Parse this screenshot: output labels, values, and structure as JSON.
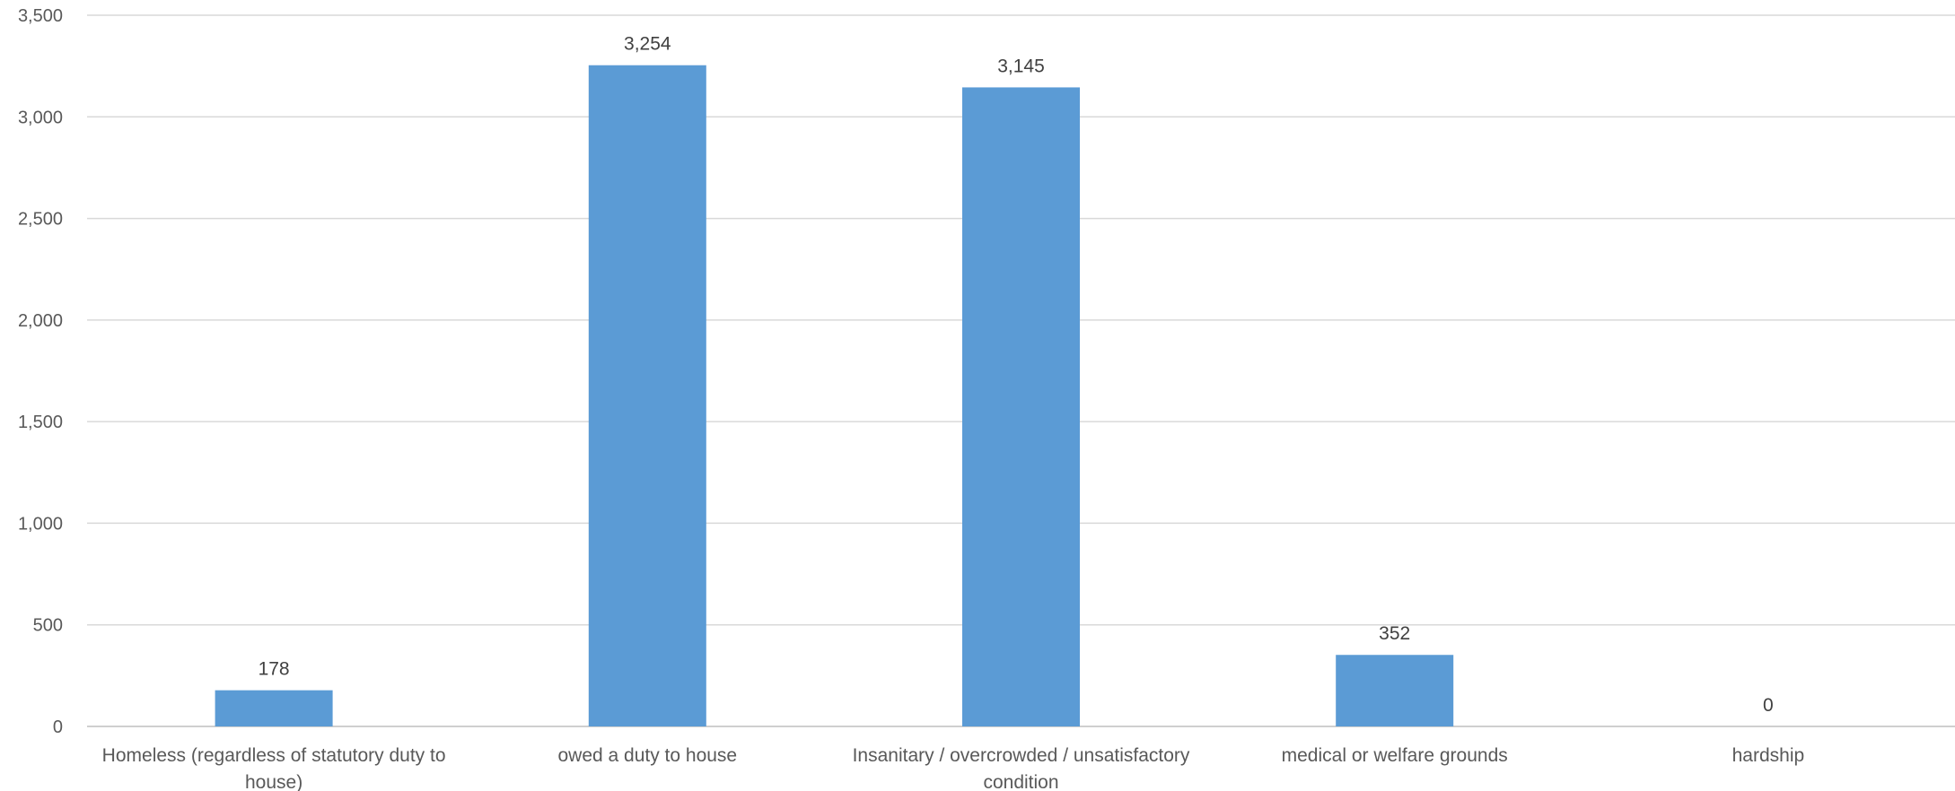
{
  "chart_data": {
    "type": "bar",
    "categories": [
      [
        "Homeless (regardless of statutory duty to",
        "house)"
      ],
      [
        "owed a duty to house"
      ],
      [
        "Insanitary / overcrowded / unsatisfactory",
        "condition"
      ],
      [
        "medical or welfare grounds"
      ],
      [
        "hardship"
      ]
    ],
    "values": [
      178,
      3254,
      3145,
      352,
      0
    ],
    "data_labels": [
      "178",
      "3,254",
      "3,145",
      "352",
      "0"
    ],
    "yticks": [
      {
        "value": 0,
        "label": "0"
      },
      {
        "value": 500,
        "label": "500"
      },
      {
        "value": 1000,
        "label": "1,000"
      },
      {
        "value": 1500,
        "label": "1,500"
      },
      {
        "value": 2000,
        "label": "2,000"
      },
      {
        "value": 2500,
        "label": "2,500"
      },
      {
        "value": 3000,
        "label": "3,000"
      },
      {
        "value": 3500,
        "label": "3,500"
      }
    ],
    "ylim": [
      0,
      3500
    ],
    "grid": true,
    "bar_color": "#5B9BD5",
    "grid_color": "#D9D9D9",
    "title": "",
    "xlabel": "",
    "ylabel": ""
  }
}
